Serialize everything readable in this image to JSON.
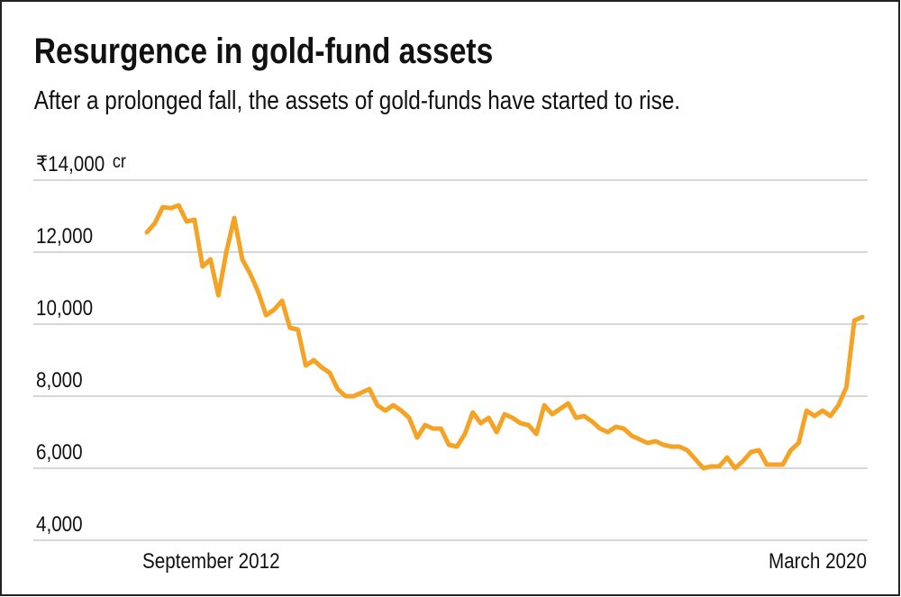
{
  "chart_data": {
    "type": "line",
    "title": "Resurgence in gold-fund assets",
    "subtitle": "After a prolonged fall, the assets of gold-funds have started to rise.",
    "y_unit": "cr",
    "categories": [
      "September 2012",
      null,
      null,
      null,
      null,
      null,
      null,
      null,
      null,
      null,
      null,
      null,
      null,
      null,
      null,
      null,
      null,
      null,
      null,
      null,
      null,
      null,
      null,
      null,
      null,
      null,
      null,
      null,
      null,
      null,
      null,
      null,
      null,
      null,
      null,
      null,
      null,
      null,
      null,
      null,
      null,
      null,
      null,
      null,
      null,
      null,
      null,
      null,
      null,
      null,
      null,
      null,
      null,
      null,
      null,
      null,
      null,
      null,
      null,
      null,
      null,
      null,
      null,
      null,
      null,
      null,
      null,
      null,
      null,
      null,
      null,
      null,
      null,
      null,
      null,
      null,
      null,
      null,
      null,
      null,
      null,
      null,
      null,
      null,
      null,
      null,
      null,
      null,
      null,
      null,
      "March 2020"
    ],
    "values": [
      12550,
      12800,
      13250,
      13220,
      13300,
      12850,
      12900,
      11600,
      11800,
      10800,
      12000,
      12950,
      11800,
      11400,
      10900,
      10250,
      10400,
      10650,
      9900,
      9850,
      8850,
      9000,
      8800,
      8650,
      8200,
      8000,
      8000,
      8100,
      8200,
      7750,
      7600,
      7750,
      7600,
      7400,
      6850,
      7200,
      7100,
      7100,
      6650,
      6600,
      6950,
      7550,
      7250,
      7400,
      7000,
      7500,
      7400,
      7250,
      7200,
      6950,
      7750,
      7500,
      7650,
      7800,
      7400,
      7450,
      7300,
      7100,
      7000,
      7150,
      7100,
      6900,
      6800,
      6700,
      6750,
      6650,
      6600,
      6600,
      6500,
      6250,
      6000,
      6050,
      6050,
      6300,
      6000,
      6200,
      6450,
      6500,
      6100,
      6100,
      6100,
      6500,
      6700,
      7600,
      7450,
      7600,
      7450,
      7750,
      8250,
      10100,
      10200
    ],
    "color": "#f5a325",
    "ylim": [
      4000,
      14000
    ],
    "yticks": [
      {
        "value": 4000,
        "label": "4,000"
      },
      {
        "value": 6000,
        "label": "6,000"
      },
      {
        "value": 8000,
        "label": "8,000"
      },
      {
        "value": 10000,
        "label": "10,000"
      },
      {
        "value": 12000,
        "label": "12,000"
      },
      {
        "value": 14000,
        "label": "₹14,000"
      }
    ],
    "grid": true
  }
}
